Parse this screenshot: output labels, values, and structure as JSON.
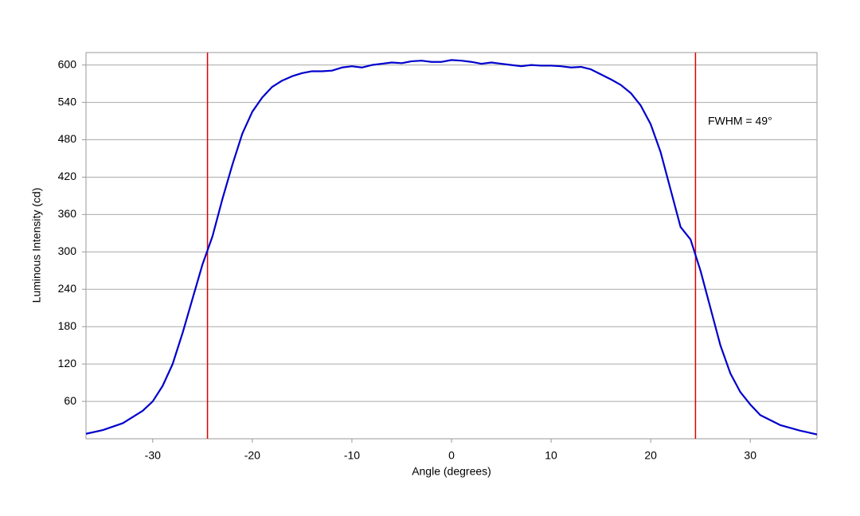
{
  "chart_data": {
    "type": "line",
    "x_label": "Angle (degrees)",
    "y_label": "Luminous Intensity (cd)",
    "annotation": "FWHM = 49°",
    "x": [
      -36.7,
      -35,
      -33,
      -31,
      -30,
      -29,
      -28,
      -27,
      -26,
      -25,
      -24,
      -23,
      -22,
      -21,
      -20,
      -19,
      -18,
      -17,
      -16,
      -15,
      -14,
      -13,
      -12,
      -11,
      -10,
      -9,
      -8,
      -7,
      -6,
      -5,
      -4,
      -3,
      -2,
      -1,
      0,
      1,
      2,
      3,
      4,
      5,
      6,
      7,
      8,
      9,
      10,
      11,
      12,
      13,
      14,
      15,
      16,
      17,
      18,
      19,
      20,
      21,
      22,
      23,
      24,
      25,
      26,
      27,
      28,
      29,
      30,
      31,
      33,
      35,
      36.7
    ],
    "series": [
      {
        "color": "#0000cc",
        "values": [
          8,
          14,
          25,
          45,
          60,
          85,
          120,
          170,
          225,
          280,
          325,
          385,
          440,
          490,
          525,
          548,
          565,
          575,
          582,
          587,
          590,
          590,
          591,
          596,
          598,
          596,
          600,
          602,
          604,
          603,
          606,
          607,
          605,
          605,
          608,
          607,
          605,
          602,
          604,
          602,
          600,
          598,
          600,
          599,
          599,
          598,
          596,
          597,
          593,
          585,
          577,
          568,
          555,
          535,
          505,
          460,
          400,
          340,
          320,
          270,
          210,
          150,
          105,
          75,
          55,
          38,
          22,
          13,
          7
        ]
      }
    ],
    "markers": [
      -24.5,
      24.5
    ],
    "marker_color": "#dd0000",
    "xlim": [
      -36.7,
      36.7
    ],
    "ylim": [
      0,
      620
    ],
    "xticks": [
      -30,
      -20,
      -10,
      0,
      10,
      20,
      30
    ],
    "yticks": [
      60,
      120,
      180,
      240,
      300,
      360,
      420,
      480,
      540,
      600
    ],
    "grid": true
  }
}
